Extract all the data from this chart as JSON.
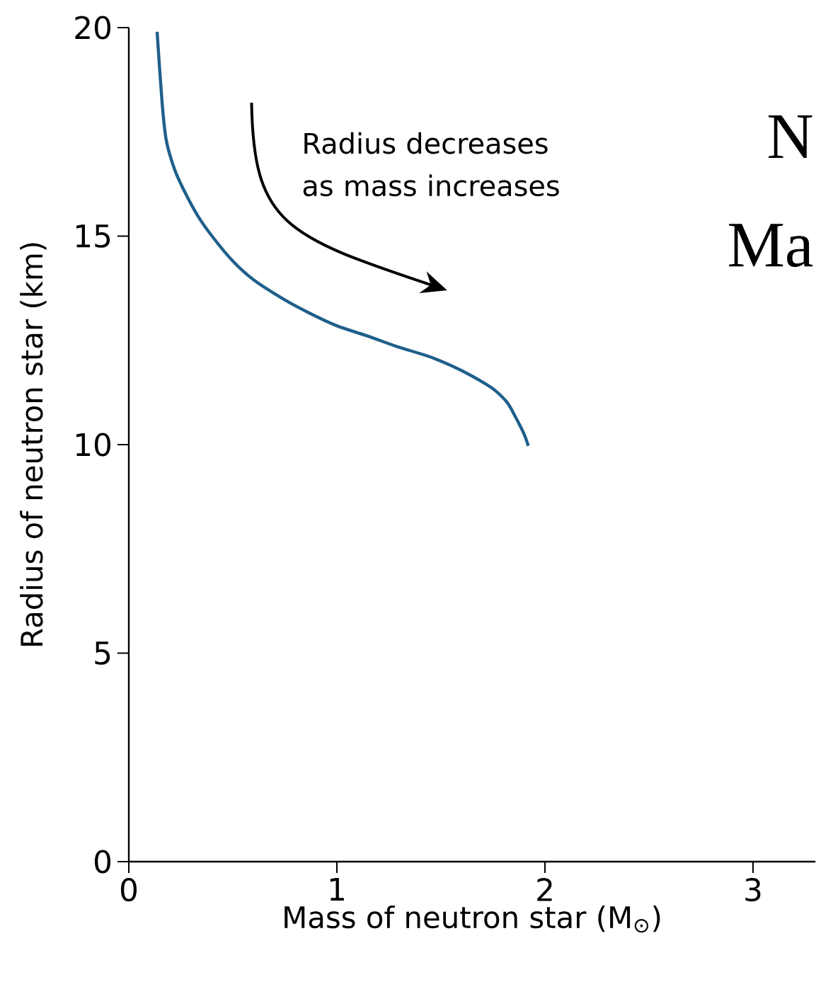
{
  "chart_data": {
    "type": "line",
    "xlabel": "Mass of neutron star (M$_{⊙}$)",
    "ylabel": "Radius of neutron star (km)",
    "annotations": [
      "Radius decreases as mass increases",
      "N",
      "Ma"
    ],
    "xlim": [
      0,
      3.3
    ],
    "ylim": [
      0,
      20
    ],
    "xticks": [
      0,
      1,
      2,
      3
    ],
    "yticks": [
      0,
      5,
      10,
      15,
      20
    ],
    "series": [
      {
        "color": "#1f5f8b",
        "x": [
          0.136,
          0.16,
          0.18,
          0.22,
          0.265,
          0.33,
          0.4,
          0.5,
          0.6,
          0.74,
          0.87,
          1.0,
          1.15,
          1.29,
          1.45,
          1.59,
          1.7,
          1.76,
          1.82,
          1.86,
          1.9,
          1.92
        ],
        "values": [
          19.9,
          18.2,
          17.3,
          16.6,
          16.1,
          15.5,
          15.0,
          14.4,
          13.95,
          13.5,
          13.15,
          12.85,
          12.6,
          12.35,
          12.1,
          11.8,
          11.5,
          11.3,
          11.0,
          10.65,
          10.25,
          9.97
        ]
      }
    ],
    "marker": "none",
    "line_style": "solid"
  }
}
